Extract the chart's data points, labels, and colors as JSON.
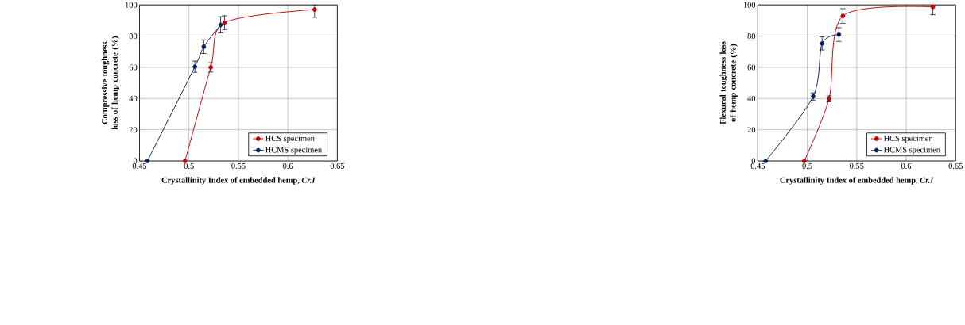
{
  "chart_data": [
    {
      "type": "line",
      "xlabel": "Crystallinity Index  of embedded hemp, *Cr.I*",
      "ylabel": "Compressive toughness loss  of hemp concrete (%)",
      "xlim": [
        0.45,
        0.65
      ],
      "xticks": [
        0.45,
        0.5,
        0.55,
        0.6,
        0.65
      ],
      "ylim": [
        0,
        100
      ],
      "yticks": [
        0,
        20,
        40,
        60,
        80,
        100
      ],
      "grid": true,
      "legend": "bottom right",
      "marker": "circle",
      "line_style": "solid",
      "series": [
        {
          "name": "HCS specimen",
          "color": "#c00000",
          "x": [
            0.496,
            0.522,
            0.536,
            0.627
          ],
          "values": [
            0,
            60,
            88.6,
            97
          ],
          "errors": [
            null,
            3,
            4.4,
            [
              92,
              100
            ]
          ]
        },
        {
          "name": "HCMS specimen",
          "color": "#002060",
          "x": [
            0.458,
            0.506,
            0.515,
            0.532
          ],
          "values": [
            0,
            60.4,
            73.2,
            87.2
          ],
          "errors": [
            null,
            3.6,
            4.4,
            5.2
          ]
        }
      ]
    },
    {
      "type": "line",
      "xlabel": "Crystallinity Index  of embedded hemp, *Cr.I*",
      "ylabel": "Flexural toughness loss of hemp concrete (%)",
      "xlim": [
        0.45,
        0.65
      ],
      "xticks": [
        0.45,
        0.5,
        0.55,
        0.6,
        0.65
      ],
      "ylim": [
        0,
        100
      ],
      "yticks": [
        0,
        20,
        40,
        60,
        80,
        100
      ],
      "grid": true,
      "legend": "bottom right",
      "marker": "circle",
      "line_style": "solid",
      "series": [
        {
          "name": "HCS specimen",
          "color": "#c00000",
          "x": [
            0.497,
            0.522,
            0.536,
            0.627
          ],
          "values": [
            0,
            39.8,
            92.9,
            98.7
          ],
          "errors": [
            null,
            1.9,
            4.7,
            [
              93.7,
              100
            ]
          ]
        },
        {
          "name": "HCMS specimen",
          "color": "#002060",
          "x": [
            0.458,
            0.506,
            0.515,
            0.532
          ],
          "values": [
            0,
            41.3,
            75.3,
            81
          ],
          "errors": [
            null,
            2.3,
            4.2,
            4.4
          ]
        }
      ]
    }
  ]
}
